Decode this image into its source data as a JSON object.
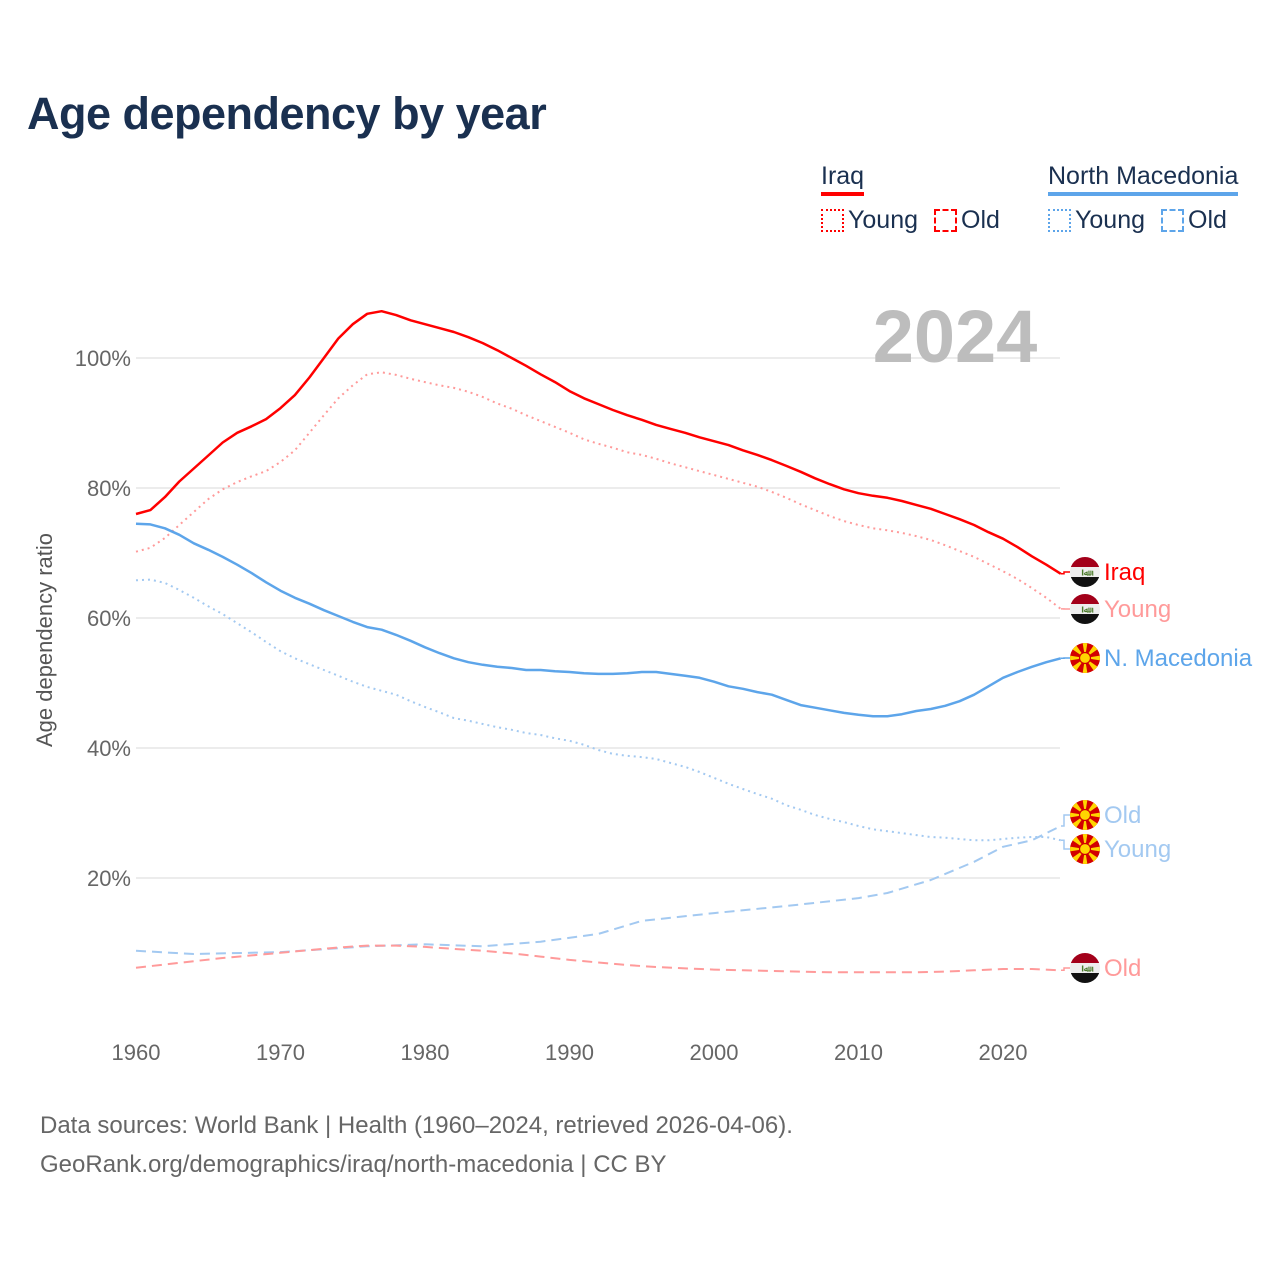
{
  "title": "Age dependency by year",
  "legend": {
    "groups": [
      {
        "name": "Iraq",
        "color": "#ff0000",
        "items": [
          "Young",
          "Old"
        ]
      },
      {
        "name": "North Macedonia",
        "color": "#5da5ea",
        "items": [
          "Young",
          "Old"
        ]
      }
    ]
  },
  "footer": {
    "line1": "Data sources: World Bank | Health (1960–2024, retrieved 2026-04-06).",
    "line2": "GeoRank.org/demographics/iraq/north-macedonia | CC BY"
  },
  "chart_data": {
    "type": "line",
    "title": "Age dependency by year",
    "year_label": "2024",
    "xlabel": "",
    "ylabel": "Age dependency ratio",
    "xlim": [
      1960,
      2024
    ],
    "ylim": [
      0,
      110
    ],
    "xticks": [
      1960,
      1970,
      1980,
      1990,
      2000,
      2010,
      2020
    ],
    "yticks": [
      {
        "v": 20,
        "label": "20%"
      },
      {
        "v": 40,
        "label": "40%"
      },
      {
        "v": 60,
        "label": "60%"
      },
      {
        "v": 80,
        "label": "80%"
      },
      {
        "v": 100,
        "label": "100%"
      }
    ],
    "grid": true,
    "series": [
      {
        "name": "Iraq",
        "end_label": "Iraq",
        "country": "iraq",
        "color": "#ff0000",
        "style": "solid",
        "x": [
          1960,
          1961,
          1962,
          1963,
          1964,
          1965,
          1966,
          1967,
          1968,
          1969,
          1970,
          1971,
          1972,
          1973,
          1974,
          1975,
          1976,
          1977,
          1978,
          1979,
          1980,
          1981,
          1982,
          1983,
          1984,
          1985,
          1986,
          1987,
          1988,
          1989,
          1990,
          1991,
          1992,
          1993,
          1994,
          1995,
          1996,
          1997,
          1998,
          1999,
          2000,
          2001,
          2002,
          2003,
          2004,
          2005,
          2006,
          2007,
          2008,
          2009,
          2010,
          2011,
          2012,
          2013,
          2014,
          2015,
          2016,
          2017,
          2018,
          2019,
          2020,
          2021,
          2022,
          2023,
          2024
        ],
        "values": [
          76.0,
          76.6,
          78.6,
          81,
          83,
          85,
          87,
          88.5,
          89.5,
          90.6,
          92.3,
          94.3,
          97,
          100,
          103,
          105.2,
          106.8,
          107.2,
          106.6,
          105.8,
          105.2,
          104.6,
          104,
          103.2,
          102.3,
          101.2,
          100,
          98.8,
          97.5,
          96.3,
          94.9,
          93.8,
          92.9,
          92,
          91.2,
          90.5,
          89.7,
          89.1,
          88.5,
          87.8,
          87.2,
          86.6,
          85.8,
          85.1,
          84.3,
          83.4,
          82.5,
          81.5,
          80.6,
          79.8,
          79.2,
          78.8,
          78.5,
          78,
          77.4,
          76.8,
          76,
          75.2,
          74.3,
          73.2,
          72.2,
          70.9,
          69.5,
          68.2,
          66.8
        ]
      },
      {
        "name": "Iraq Young",
        "end_label": "Young",
        "country": "iraq",
        "color": "#ff9a9a",
        "style": "dotted",
        "x": [
          1960,
          1961,
          1962,
          1963,
          1964,
          1965,
          1966,
          1967,
          1968,
          1969,
          1970,
          1971,
          1972,
          1973,
          1974,
          1975,
          1976,
          1977,
          1978,
          1979,
          1980,
          1981,
          1982,
          1983,
          1984,
          1985,
          1986,
          1987,
          1988,
          1989,
          1990,
          1991,
          1992,
          1993,
          1994,
          1995,
          1996,
          1997,
          1998,
          1999,
          2000,
          2001,
          2002,
          2003,
          2004,
          2005,
          2006,
          2007,
          2008,
          2009,
          2010,
          2011,
          2012,
          2013,
          2014,
          2015,
          2016,
          2017,
          2018,
          2019,
          2020,
          2021,
          2022,
          2023,
          2024
        ],
        "values": [
          70.2,
          70.8,
          72.3,
          74.3,
          76.3,
          78.3,
          79.8,
          80.9,
          81.8,
          82.6,
          84,
          85.8,
          88.5,
          91.2,
          93.8,
          95.8,
          97.5,
          97.8,
          97.4,
          96.8,
          96.3,
          95.8,
          95.4,
          94.8,
          94,
          93,
          92.2,
          91.2,
          90.3,
          89.4,
          88.5,
          87.5,
          86.8,
          86.2,
          85.5,
          85.1,
          84.5,
          83.8,
          83.2,
          82.6,
          82,
          81.4,
          80.8,
          80.2,
          79.4,
          78.5,
          77.5,
          76.6,
          75.7,
          74.9,
          74.3,
          73.8,
          73.5,
          73.1,
          72.6,
          72,
          71.2,
          70.3,
          69.4,
          68.3,
          67.2,
          66,
          64.6,
          63.1,
          61.4
        ]
      },
      {
        "name": "North Macedonia",
        "end_label": "N. Macedonia",
        "country": "mk",
        "color": "#5da5ea",
        "style": "solid",
        "x": [
          1960,
          1961,
          1962,
          1963,
          1964,
          1965,
          1966,
          1967,
          1968,
          1969,
          1970,
          1971,
          1972,
          1973,
          1974,
          1975,
          1976,
          1977,
          1978,
          1979,
          1980,
          1981,
          1982,
          1983,
          1984,
          1985,
          1986,
          1987,
          1988,
          1989,
          1990,
          1991,
          1992,
          1993,
          1994,
          1995,
          1996,
          1997,
          1998,
          1999,
          2000,
          2001,
          2002,
          2003,
          2004,
          2005,
          2006,
          2007,
          2008,
          2009,
          2010,
          2011,
          2012,
          2013,
          2014,
          2015,
          2016,
          2017,
          2018,
          2019,
          2020,
          2021,
          2022,
          2023,
          2024
        ],
        "values": [
          74.5,
          74.4,
          73.8,
          72.8,
          71.5,
          70.5,
          69.4,
          68.2,
          66.9,
          65.5,
          64.2,
          63.1,
          62.2,
          61.2,
          60.3,
          59.4,
          58.6,
          58.2,
          57.4,
          56.5,
          55.5,
          54.6,
          53.8,
          53.2,
          52.8,
          52.5,
          52.3,
          52,
          52,
          51.8,
          51.7,
          51.5,
          51.4,
          51.4,
          51.5,
          51.7,
          51.7,
          51.4,
          51.1,
          50.8,
          50.2,
          49.5,
          49.1,
          48.6,
          48.2,
          47.4,
          46.6,
          46.2,
          45.8,
          45.4,
          45.1,
          44.9,
          44.9,
          45.2,
          45.7,
          46,
          46.5,
          47.2,
          48.2,
          49.5,
          50.8,
          51.7,
          52.5,
          53.2,
          53.8
        ]
      },
      {
        "name": "North Macedonia Old",
        "end_label": "Old",
        "country": "mk",
        "color": "#a3c9f1",
        "style": "dashed",
        "x": [
          1960,
          1964,
          1970,
          1976,
          1980,
          1984,
          1988,
          1992,
          1995,
          2000,
          2005,
          2010,
          2012,
          2015,
          2018,
          2020,
          2022,
          2024
        ],
        "values": [
          8.8,
          8.3,
          8.6,
          9.5,
          9.8,
          9.5,
          10.2,
          11.4,
          13.4,
          14.6,
          15.7,
          16.9,
          17.7,
          19.7,
          22.5,
          24.8,
          25.8,
          28.0
        ]
      },
      {
        "name": "North Macedonia Young",
        "end_label": "Young",
        "country": "mk",
        "color": "#a3c9f1",
        "style": "dotted",
        "x": [
          1960,
          1961,
          1962,
          1963,
          1964,
          1965,
          1966,
          1967,
          1968,
          1969,
          1970,
          1971,
          1972,
          1973,
          1974,
          1975,
          1976,
          1977,
          1978,
          1979,
          1980,
          1981,
          1982,
          1983,
          1984,
          1985,
          1986,
          1987,
          1988,
          1989,
          1990,
          1991,
          1992,
          1993,
          1994,
          1995,
          1996,
          1997,
          1998,
          1999,
          2000,
          2001,
          2002,
          2003,
          2004,
          2005,
          2006,
          2007,
          2008,
          2009,
          2010,
          2011,
          2012,
          2013,
          2014,
          2015,
          2016,
          2017,
          2018,
          2019,
          2020,
          2021,
          2022,
          2023,
          2024
        ],
        "values": [
          65.8,
          65.9,
          65.4,
          64.3,
          63.1,
          61.8,
          60.6,
          59.2,
          57.8,
          56.3,
          54.9,
          53.8,
          52.9,
          52,
          51.1,
          50.2,
          49.4,
          48.8,
          48.2,
          47.2,
          46.3,
          45.5,
          44.6,
          44.2,
          43.7,
          43.2,
          42.8,
          42.3,
          42,
          41.5,
          41.1,
          40.5,
          39.7,
          39.1,
          38.8,
          38.6,
          38.3,
          37.7,
          37.1,
          36.3,
          35.4,
          34.5,
          33.7,
          32.9,
          32.2,
          31.2,
          30.5,
          29.7,
          29.1,
          28.6,
          28,
          27.5,
          27.2,
          26.9,
          26.6,
          26.3,
          26.2,
          26,
          25.8,
          25.8,
          26,
          26.2,
          26.3,
          26.3,
          25.8
        ]
      },
      {
        "name": "Iraq Old",
        "end_label": "Old",
        "country": "iraq",
        "color": "#ff9a9a",
        "style": "dashed",
        "x": [
          1960,
          1962,
          1964,
          1966,
          1968,
          1970,
          1972,
          1974,
          1976,
          1978,
          1980,
          1982,
          1984,
          1986,
          1988,
          1990,
          1992,
          1994,
          1996,
          1998,
          2000,
          2002,
          2004,
          2006,
          2008,
          2010,
          2012,
          2014,
          2016,
          2018,
          2020,
          2022,
          2024
        ],
        "values": [
          6.2,
          6.7,
          7.2,
          7.7,
          8.1,
          8.5,
          8.9,
          9.3,
          9.6,
          9.6,
          9.4,
          9.1,
          8.8,
          8.4,
          7.9,
          7.4,
          7.0,
          6.6,
          6.3,
          6.1,
          5.9,
          5.8,
          5.7,
          5.6,
          5.5,
          5.5,
          5.5,
          5.5,
          5.6,
          5.8,
          6.0,
          6.0,
          5.8
        ]
      }
    ]
  }
}
